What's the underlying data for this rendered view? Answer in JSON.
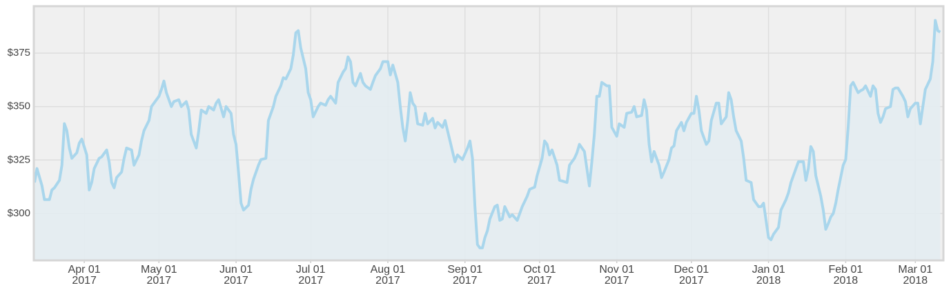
{
  "chart_data": {
    "type": "area",
    "color": "#a9d6ec",
    "fill_color": "#e3ecf1",
    "background": "#f0f0f0",
    "grid": true,
    "xlim": [
      "2017-03-12",
      "2018-03-12"
    ],
    "xticks": [
      {
        "value": "2017-04-01",
        "label": "Apr 01 2017"
      },
      {
        "value": "2017-05-01",
        "label": "May 01 2017"
      },
      {
        "value": "2017-06-01",
        "label": "Jun 01 2017"
      },
      {
        "value": "2017-07-01",
        "label": "Jul 01 2017"
      },
      {
        "value": "2017-08-01",
        "label": "Aug 01 2017"
      },
      {
        "value": "2017-09-01",
        "label": "Sep 01 2017"
      },
      {
        "value": "2017-10-01",
        "label": "Oct 01 2017"
      },
      {
        "value": "2017-11-01",
        "label": "Nov 01 2017"
      },
      {
        "value": "2017-12-01",
        "label": "Dec 01 2017"
      },
      {
        "value": "2018-01-01",
        "label": "Jan 01 2018"
      },
      {
        "value": "2018-02-01",
        "label": "Feb 01 2018"
      },
      {
        "value": "2018-03-01",
        "label": "Mar 01 2018"
      }
    ],
    "ylim": [
      278.4,
      396.6
    ],
    "yticks": [
      {
        "value": 300,
        "label": "$300"
      },
      {
        "value": 325,
        "label": "$325"
      },
      {
        "value": 350,
        "label": "$350"
      },
      {
        "value": 375,
        "label": "$375"
      }
    ],
    "x": [
      "2017-03-12",
      "2017-03-13",
      "2017-03-15",
      "2017-03-16",
      "2017-03-18",
      "2017-03-19",
      "2017-03-20",
      "2017-03-22",
      "2017-03-23",
      "2017-03-24",
      "2017-03-25",
      "2017-03-26",
      "2017-03-27",
      "2017-03-29",
      "2017-03-30",
      "2017-03-31",
      "2017-04-02",
      "2017-04-03",
      "2017-04-04",
      "2017-04-05",
      "2017-04-07",
      "2017-04-08",
      "2017-04-10",
      "2017-04-11",
      "2017-04-12",
      "2017-04-13",
      "2017-04-14",
      "2017-04-16",
      "2017-04-17",
      "2017-04-18",
      "2017-04-20",
      "2017-04-21",
      "2017-04-23",
      "2017-04-24",
      "2017-04-25",
      "2017-04-27",
      "2017-04-28",
      "2017-04-30",
      "2017-05-01",
      "2017-05-02",
      "2017-05-03",
      "2017-05-04",
      "2017-05-06",
      "2017-05-07",
      "2017-05-09",
      "2017-05-10",
      "2017-05-12",
      "2017-05-13",
      "2017-05-14",
      "2017-05-16",
      "2017-05-17",
      "2017-05-18",
      "2017-05-20",
      "2017-05-21",
      "2017-05-23",
      "2017-05-24",
      "2017-05-25",
      "2017-05-27",
      "2017-05-28",
      "2017-05-30",
      "2017-05-31",
      "2017-06-01",
      "2017-06-02",
      "2017-06-03",
      "2017-06-04",
      "2017-06-06",
      "2017-06-07",
      "2017-06-08",
      "2017-06-10",
      "2017-06-11",
      "2017-06-13",
      "2017-06-14",
      "2017-06-16",
      "2017-06-17",
      "2017-06-19",
      "2017-06-20",
      "2017-06-21",
      "2017-06-23",
      "2017-06-24",
      "2017-06-25",
      "2017-06-26",
      "2017-06-27",
      "2017-06-29",
      "2017-06-30",
      "2017-07-01",
      "2017-07-02",
      "2017-07-04",
      "2017-07-05",
      "2017-07-07",
      "2017-07-08",
      "2017-07-09",
      "2017-07-11",
      "2017-07-12",
      "2017-07-14",
      "2017-07-15",
      "2017-07-16",
      "2017-07-17",
      "2017-07-18",
      "2017-07-19",
      "2017-07-21",
      "2017-07-22",
      "2017-07-23",
      "2017-07-25",
      "2017-07-26",
      "2017-07-27",
      "2017-07-29",
      "2017-07-30",
      "2017-08-01",
      "2017-08-02",
      "2017-08-03",
      "2017-08-05",
      "2017-08-06",
      "2017-08-07",
      "2017-08-08",
      "2017-08-09",
      "2017-08-10",
      "2017-08-11",
      "2017-08-12",
      "2017-08-13",
      "2017-08-15",
      "2017-08-16",
      "2017-08-17",
      "2017-08-19",
      "2017-08-20",
      "2017-08-21",
      "2017-08-23",
      "2017-08-24",
      "2017-08-25",
      "2017-08-26",
      "2017-08-27",
      "2017-08-28",
      "2017-08-29",
      "2017-08-31",
      "2017-09-02",
      "2017-09-03",
      "2017-09-04",
      "2017-09-05",
      "2017-09-06",
      "2017-09-07",
      "2017-09-08",
      "2017-09-09",
      "2017-09-10",
      "2017-09-11",
      "2017-09-13",
      "2017-09-14",
      "2017-09-15",
      "2017-09-16",
      "2017-09-17",
      "2017-09-19",
      "2017-09-20",
      "2017-09-22",
      "2017-09-23",
      "2017-09-24",
      "2017-09-26",
      "2017-09-27",
      "2017-09-29",
      "2017-09-30",
      "2017-10-02",
      "2017-10-03",
      "2017-10-04",
      "2017-10-05",
      "2017-10-06",
      "2017-10-08",
      "2017-10-09",
      "2017-10-10",
      "2017-10-12",
      "2017-10-13",
      "2017-10-15",
      "2017-10-16",
      "2017-10-17",
      "2017-10-19",
      "2017-10-20",
      "2017-10-21",
      "2017-10-22",
      "2017-10-23",
      "2017-10-24",
      "2017-10-25",
      "2017-10-26",
      "2017-10-28",
      "2017-10-29",
      "2017-10-30",
      "2017-11-01",
      "2017-11-02",
      "2017-11-04",
      "2017-11-05",
      "2017-11-07",
      "2017-11-08",
      "2017-11-09",
      "2017-11-11",
      "2017-11-12",
      "2017-11-13",
      "2017-11-14",
      "2017-11-15",
      "2017-11-16",
      "2017-11-18",
      "2017-11-19",
      "2017-11-20",
      "2017-11-22",
      "2017-11-23",
      "2017-11-24",
      "2017-11-25",
      "2017-11-27",
      "2017-11-28",
      "2017-11-29",
      "2017-12-01",
      "2017-12-02",
      "2017-12-03",
      "2017-12-04",
      "2017-12-05",
      "2017-12-07",
      "2017-12-08",
      "2017-12-09",
      "2017-12-11",
      "2017-12-12",
      "2017-12-13",
      "2017-12-15",
      "2017-12-16",
      "2017-12-17",
      "2017-12-18",
      "2017-12-19",
      "2017-12-21",
      "2017-12-22",
      "2017-12-23",
      "2017-12-25",
      "2017-12-26",
      "2017-12-28",
      "2017-12-29",
      "2017-12-30",
      "2017-12-31",
      "2018-01-01",
      "2018-01-02",
      "2018-01-03",
      "2018-01-05",
      "2018-01-06",
      "2018-01-08",
      "2018-01-09",
      "2018-01-10",
      "2018-01-12",
      "2018-01-13",
      "2018-01-15",
      "2018-01-16",
      "2018-01-17",
      "2018-01-18",
      "2018-01-19",
      "2018-01-20",
      "2018-01-22",
      "2018-01-23",
      "2018-01-24",
      "2018-01-25",
      "2018-01-26",
      "2018-01-27",
      "2018-01-28",
      "2018-01-29",
      "2018-01-31",
      "2018-02-01",
      "2018-02-02",
      "2018-02-03",
      "2018-02-04",
      "2018-02-06",
      "2018-02-07",
      "2018-02-08",
      "2018-02-09",
      "2018-02-11",
      "2018-02-12",
      "2018-02-13",
      "2018-02-14",
      "2018-02-15",
      "2018-02-16",
      "2018-02-17",
      "2018-02-19",
      "2018-02-20",
      "2018-02-21",
      "2018-02-22",
      "2018-02-24",
      "2018-02-25",
      "2018-02-26",
      "2018-02-27",
      "2018-03-01",
      "2018-03-02",
      "2018-03-03",
      "2018-03-04",
      "2018-03-05",
      "2018-03-07",
      "2018-03-08",
      "2018-03-09",
      "2018-03-10",
      "2018-03-11"
    ],
    "values": [
      314.5,
      321,
      313,
      306.5,
      306.5,
      311,
      312,
      315.5,
      322.6,
      342,
      338.7,
      330.6,
      325.8,
      328.4,
      332.9,
      334.8,
      327.4,
      311,
      314.5,
      321,
      325.8,
      326.5,
      329.7,
      324,
      314.5,
      312,
      316.8,
      319.4,
      325.8,
      330.6,
      329.7,
      322.6,
      327.4,
      333.9,
      338.7,
      343.5,
      350,
      353.2,
      354.8,
      358,
      361.9,
      356.5,
      350,
      352.3,
      353.2,
      350,
      352.3,
      348.4,
      337,
      330.6,
      338.7,
      348.4,
      346.8,
      350,
      348.4,
      351.6,
      353.2,
      345.2,
      350,
      346.8,
      337,
      332.3,
      319.4,
      304.8,
      301.6,
      303.9,
      311.3,
      316,
      322.6,
      325.2,
      325.8,
      343.5,
      350,
      354.8,
      359.7,
      363.5,
      362.9,
      367.7,
      374.2,
      384.5,
      385.5,
      377.4,
      367.7,
      356.5,
      353.2,
      345.2,
      350,
      351.6,
      350.6,
      353.2,
      354.8,
      351.6,
      361.3,
      366.1,
      367.7,
      373.2,
      371,
      361.3,
      359.7,
      365.5,
      361.3,
      359.7,
      358,
      361.3,
      364.5,
      367.7,
      371,
      371,
      364.8,
      369.4,
      361.3,
      350,
      340.3,
      333.9,
      343.5,
      356.5,
      351.6,
      350,
      341.9,
      341.3,
      346.8,
      341.9,
      344.5,
      340,
      342.6,
      340.3,
      343.5,
      338.7,
      333.9,
      329,
      324.2,
      327.4,
      325.2,
      330.6,
      333.9,
      325.8,
      303.2,
      285.5,
      283.9,
      283.9,
      288.7,
      291.9,
      297.4,
      303.2,
      303.9,
      296.8,
      297.4,
      303.2,
      298.4,
      299.4,
      296.8,
      300,
      303.2,
      308.1,
      311.3,
      312.3,
      317.7,
      325.8,
      333.9,
      332.3,
      327.4,
      329.7,
      322.6,
      315.5,
      315.2,
      314.5,
      322.6,
      325.8,
      328.4,
      332.3,
      329,
      321,
      312.9,
      324.2,
      337,
      354.8,
      354.8,
      361.3,
      359.7,
      359.7,
      340.3,
      336.1,
      341.9,
      340.3,
      346.8,
      347.4,
      350,
      345.2,
      345.8,
      353.2,
      348.4,
      332.3,
      324.2,
      329,
      322.6,
      316.8,
      319.4,
      325.2,
      330.6,
      331.6,
      338.7,
      342.6,
      338.7,
      342.6,
      346.8,
      346.8,
      354.8,
      348.4,
      338.7,
      332.3,
      333.9,
      343.5,
      351.6,
      351.6,
      341.9,
      345.2,
      356.5,
      353.2,
      345.2,
      338.7,
      333.9,
      325.8,
      315.5,
      314.5,
      306.5,
      303.2,
      303.2,
      304.8,
      296.8,
      288.7,
      287.7,
      290.3,
      293.5,
      301.6,
      306.5,
      309.7,
      314.5,
      321,
      324.2,
      324.2,
      315.5,
      321,
      331.3,
      329,
      317.7,
      308.1,
      301.6,
      292.6,
      295.2,
      298.4,
      300,
      304.8,
      311.3,
      322.6,
      325.2,
      340.3,
      359.7,
      361.3,
      356.5,
      357.4,
      358,
      359.7,
      354.8,
      359.7,
      358,
      346.8,
      342.6,
      345.2,
      349,
      350,
      358,
      358.7,
      358.7,
      354.8,
      352.3,
      345.2,
      349,
      351.6,
      351.6,
      341.9,
      350,
      358,
      362.9,
      371,
      390.3,
      385.5,
      384.8
    ]
  }
}
